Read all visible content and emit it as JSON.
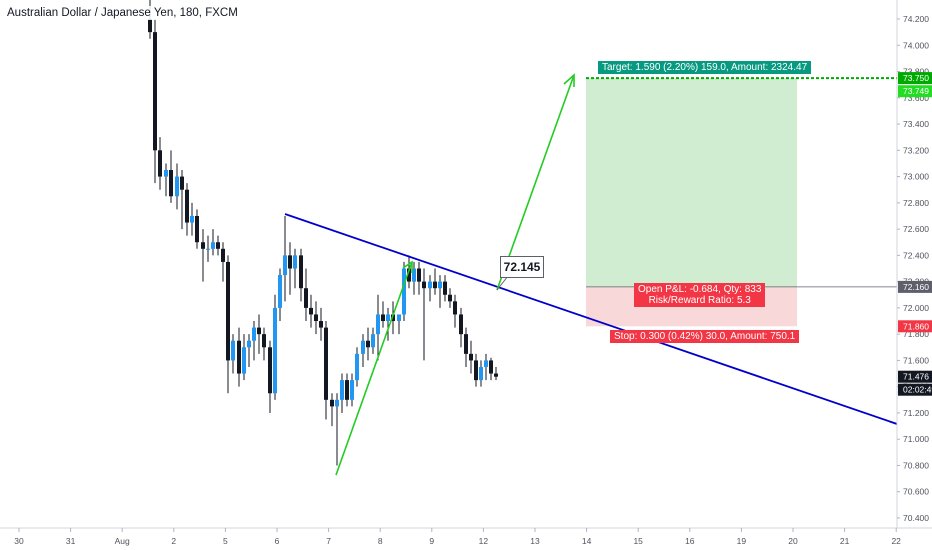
{
  "header": {
    "title": "Australian Dollar / Japanese Yen, 180, FXCM"
  },
  "colors": {
    "up_candle": "#2196f3",
    "down_candle": "#131722",
    "trendline": "#0000cc",
    "arrow": "#22cc22",
    "profit_zone": "#cdeccf",
    "loss_zone": "#f9d6d8",
    "target_green": "#00aa00",
    "stop_red": "#f23645"
  },
  "annotations": {
    "callout_value": "72.145",
    "target_label": "Target: 1.590 (2.20%) 159.0, Amount: 2324.47",
    "open_label_line1": "Open P&L: -0.684, Qty: 833",
    "open_label_line2": "Risk/Reward Ratio: 5.3",
    "stop_label": "Stop: 0.300 (0.42%) 30.0, Amount: 750.1"
  },
  "price_tags": {
    "target": "73.750",
    "target_current": "73.749",
    "entry": "72.160",
    "stop": "71.860",
    "last": "71.476",
    "countdown": "02:02:49"
  },
  "chart_data": {
    "type": "candlestick",
    "title": "Australian Dollar / Japanese Yen, 180, FXCM",
    "x_ticks": [
      "30",
      "31",
      "Aug",
      "2",
      "5",
      "6",
      "7",
      "8",
      "9",
      "12",
      "13",
      "14",
      "15",
      "16",
      "19",
      "20",
      "21",
      "22"
    ],
    "y_ticks": [
      "70.400",
      "70.600",
      "70.800",
      "71.000",
      "71.200",
      "71.400",
      "71.600",
      "71.800",
      "72.000",
      "72.200",
      "72.400",
      "72.600",
      "72.800",
      "73.000",
      "73.200",
      "73.400",
      "73.600",
      "73.800",
      "74.000",
      "74.200"
    ],
    "y_range": [
      70.35,
      74.3
    ],
    "candles": [
      {
        "x": 150,
        "o": 74.2,
        "h": 74.45,
        "l": 74.05,
        "c": 74.1
      },
      {
        "x": 155,
        "o": 74.1,
        "h": 74.2,
        "l": 72.95,
        "c": 73.2
      },
      {
        "x": 160,
        "o": 73.2,
        "h": 73.3,
        "l": 72.9,
        "c": 73.0
      },
      {
        "x": 166,
        "o": 73.0,
        "h": 73.1,
        "l": 72.85,
        "c": 73.05
      },
      {
        "x": 171,
        "o": 73.05,
        "h": 73.2,
        "l": 72.8,
        "c": 72.85
      },
      {
        "x": 177,
        "o": 72.85,
        "h": 73.1,
        "l": 72.75,
        "c": 73.0
      },
      {
        "x": 182,
        "o": 73.0,
        "h": 73.05,
        "l": 72.6,
        "c": 72.9
      },
      {
        "x": 187,
        "o": 72.9,
        "h": 72.95,
        "l": 72.55,
        "c": 72.65
      },
      {
        "x": 192,
        "o": 72.65,
        "h": 72.8,
        "l": 72.55,
        "c": 72.7
      },
      {
        "x": 197,
        "o": 72.7,
        "h": 72.75,
        "l": 72.45,
        "c": 72.5
      },
      {
        "x": 203,
        "o": 72.5,
        "h": 72.6,
        "l": 72.2,
        "c": 72.45
      },
      {
        "x": 208,
        "o": 72.45,
        "h": 72.55,
        "l": 72.35,
        "c": 72.45
      },
      {
        "x": 213,
        "o": 72.45,
        "h": 72.6,
        "l": 72.4,
        "c": 72.5
      },
      {
        "x": 218,
        "o": 72.5,
        "h": 72.55,
        "l": 72.4,
        "c": 72.45
      },
      {
        "x": 223,
        "o": 72.45,
        "h": 72.5,
        "l": 72.2,
        "c": 72.35
      },
      {
        "x": 228,
        "o": 72.35,
        "h": 72.4,
        "l": 71.35,
        "c": 71.6
      },
      {
        "x": 233,
        "o": 71.6,
        "h": 71.8,
        "l": 71.5,
        "c": 71.75
      },
      {
        "x": 239,
        "o": 71.75,
        "h": 71.85,
        "l": 71.4,
        "c": 71.5
      },
      {
        "x": 244,
        "o": 71.5,
        "h": 71.8,
        "l": 71.45,
        "c": 71.7
      },
      {
        "x": 249,
        "o": 71.7,
        "h": 71.8,
        "l": 71.55,
        "c": 71.75
      },
      {
        "x": 254,
        "o": 71.75,
        "h": 71.9,
        "l": 71.6,
        "c": 71.85
      },
      {
        "x": 259,
        "o": 71.85,
        "h": 71.95,
        "l": 71.65,
        "c": 71.8
      },
      {
        "x": 264,
        "o": 71.8,
        "h": 71.85,
        "l": 71.6,
        "c": 71.7
      },
      {
        "x": 270,
        "o": 71.7,
        "h": 71.75,
        "l": 71.2,
        "c": 71.35
      },
      {
        "x": 275,
        "o": 71.35,
        "h": 72.1,
        "l": 71.3,
        "c": 72.0
      },
      {
        "x": 280,
        "o": 72.0,
        "h": 72.3,
        "l": 71.9,
        "c": 72.25
      },
      {
        "x": 285,
        "o": 72.25,
        "h": 72.7,
        "l": 72.05,
        "c": 72.4
      },
      {
        "x": 290,
        "o": 72.4,
        "h": 72.5,
        "l": 72.1,
        "c": 72.3
      },
      {
        "x": 295,
        "o": 72.3,
        "h": 72.45,
        "l": 72.15,
        "c": 72.4
      },
      {
        "x": 301,
        "o": 72.4,
        "h": 72.45,
        "l": 72.05,
        "c": 72.15
      },
      {
        "x": 306,
        "o": 72.15,
        "h": 72.3,
        "l": 71.9,
        "c": 72.0
      },
      {
        "x": 311,
        "o": 72.0,
        "h": 72.1,
        "l": 71.85,
        "c": 71.95
      },
      {
        "x": 316,
        "o": 71.95,
        "h": 72.05,
        "l": 71.8,
        "c": 71.9
      },
      {
        "x": 321,
        "o": 71.9,
        "h": 72.0,
        "l": 71.75,
        "c": 71.85
      },
      {
        "x": 326,
        "o": 71.85,
        "h": 71.9,
        "l": 71.15,
        "c": 71.3
      },
      {
        "x": 332,
        "o": 71.3,
        "h": 71.35,
        "l": 71.1,
        "c": 71.25
      },
      {
        "x": 337,
        "o": 71.25,
        "h": 71.35,
        "l": 70.8,
        "c": 71.3
      },
      {
        "x": 342,
        "o": 71.3,
        "h": 71.5,
        "l": 71.2,
        "c": 71.45
      },
      {
        "x": 347,
        "o": 71.45,
        "h": 71.5,
        "l": 71.25,
        "c": 71.3
      },
      {
        "x": 352,
        "o": 71.3,
        "h": 71.5,
        "l": 71.25,
        "c": 71.45
      },
      {
        "x": 357,
        "o": 71.45,
        "h": 71.7,
        "l": 71.4,
        "c": 71.65
      },
      {
        "x": 363,
        "o": 71.65,
        "h": 71.8,
        "l": 71.55,
        "c": 71.75
      },
      {
        "x": 368,
        "o": 71.75,
        "h": 71.85,
        "l": 71.6,
        "c": 71.7
      },
      {
        "x": 373,
        "o": 71.7,
        "h": 71.85,
        "l": 71.65,
        "c": 71.8
      },
      {
        "x": 378,
        "o": 71.8,
        "h": 72.1,
        "l": 71.6,
        "c": 71.95
      },
      {
        "x": 383,
        "o": 71.95,
        "h": 72.05,
        "l": 71.85,
        "c": 71.9
      },
      {
        "x": 388,
        "o": 71.9,
        "h": 72.0,
        "l": 71.75,
        "c": 71.95
      },
      {
        "x": 393,
        "o": 71.95,
        "h": 72.05,
        "l": 71.8,
        "c": 71.9
      },
      {
        "x": 399,
        "o": 71.9,
        "h": 71.95,
        "l": 71.8,
        "c": 71.95
      },
      {
        "x": 404,
        "o": 71.95,
        "h": 72.35,
        "l": 71.9,
        "c": 72.3
      },
      {
        "x": 409,
        "o": 72.3,
        "h": 72.4,
        "l": 72.15,
        "c": 72.2
      },
      {
        "x": 414,
        "o": 72.2,
        "h": 72.35,
        "l": 72.1,
        "c": 72.3
      },
      {
        "x": 419,
        "o": 72.3,
        "h": 72.35,
        "l": 72.1,
        "c": 72.2
      },
      {
        "x": 424,
        "o": 72.2,
        "h": 72.3,
        "l": 71.6,
        "c": 72.15
      },
      {
        "x": 430,
        "o": 72.15,
        "h": 72.25,
        "l": 72.05,
        "c": 72.2
      },
      {
        "x": 435,
        "o": 72.2,
        "h": 72.3,
        "l": 72.1,
        "c": 72.15
      },
      {
        "x": 440,
        "o": 72.15,
        "h": 72.25,
        "l": 72.0,
        "c": 72.2
      },
      {
        "x": 445,
        "o": 72.2,
        "h": 72.25,
        "l": 72.05,
        "c": 72.1
      },
      {
        "x": 450,
        "o": 72.1,
        "h": 72.15,
        "l": 72.0,
        "c": 72.05
      },
      {
        "x": 455,
        "o": 72.05,
        "h": 72.1,
        "l": 71.85,
        "c": 71.95
      },
      {
        "x": 461,
        "o": 71.95,
        "h": 72.0,
        "l": 71.7,
        "c": 71.8
      },
      {
        "x": 466,
        "o": 71.8,
        "h": 71.85,
        "l": 71.55,
        "c": 71.65
      },
      {
        "x": 471,
        "o": 71.65,
        "h": 71.75,
        "l": 71.5,
        "c": 71.6
      },
      {
        "x": 476,
        "o": 71.6,
        "h": 71.65,
        "l": 71.4,
        "c": 71.45
      },
      {
        "x": 481,
        "o": 71.45,
        "h": 71.6,
        "l": 71.4,
        "c": 71.55
      },
      {
        "x": 486,
        "o": 71.55,
        "h": 71.65,
        "l": 71.45,
        "c": 71.6
      },
      {
        "x": 491,
        "o": 71.6,
        "h": 71.62,
        "l": 71.45,
        "c": 71.5
      },
      {
        "x": 496,
        "o": 71.5,
        "h": 71.55,
        "l": 71.45,
        "c": 71.476
      }
    ]
  }
}
